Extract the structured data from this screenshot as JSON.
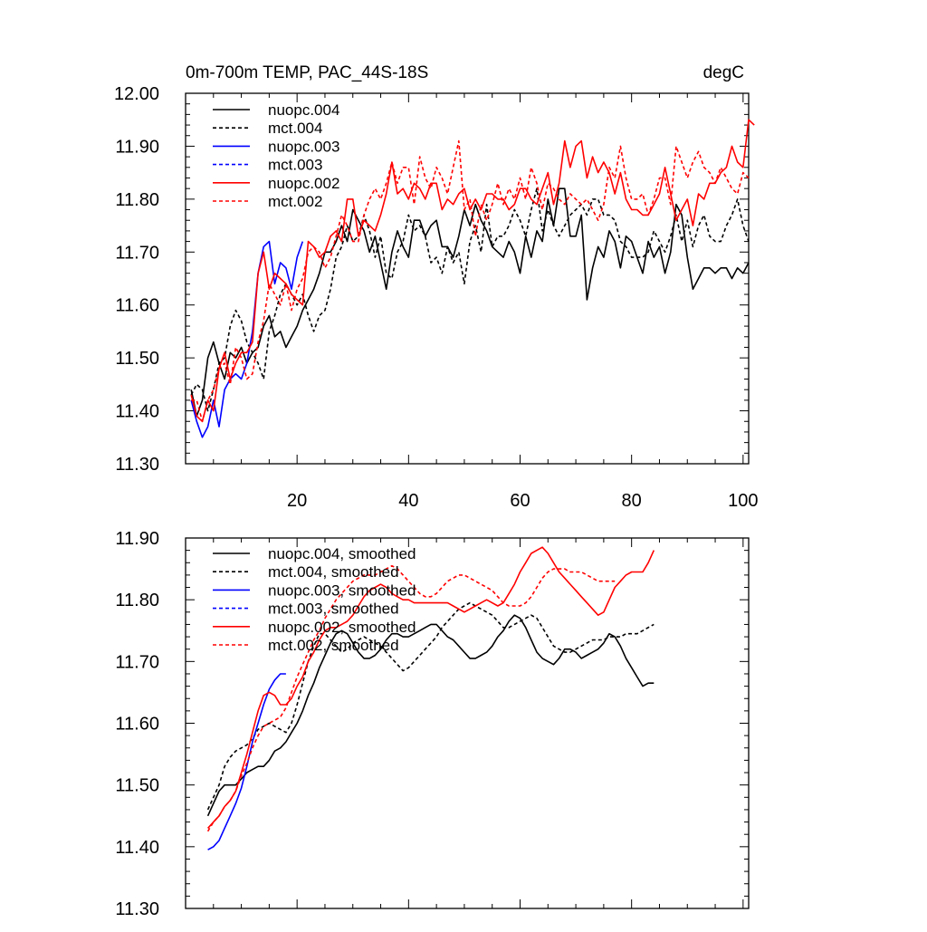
{
  "chart_data": [
    {
      "type": "line",
      "title": "0m-700m TEMP, PAC_44S-18S",
      "units": "degC",
      "xlabel": "",
      "ylabel": "",
      "xlim": [
        0,
        101
      ],
      "ylim": [
        11.3,
        12.0
      ],
      "xticks": [
        20,
        40,
        60,
        80,
        100
      ],
      "xtick_labels": [
        "20",
        "40",
        "60",
        "80",
        "100"
      ],
      "yticks": [
        11.3,
        11.4,
        11.5,
        11.6,
        11.7,
        11.8,
        11.9,
        12.0
      ],
      "ytick_labels": [
        "11.30",
        "11.40",
        "11.50",
        "11.60",
        "11.70",
        "11.80",
        "11.90",
        "12.00"
      ],
      "legend_position": "top-left",
      "series": [
        {
          "name": "nuopc.004",
          "color": "#000000",
          "style": "solid",
          "x0": 1,
          "values": [
            11.44,
            11.39,
            11.42,
            11.5,
            11.53,
            11.49,
            11.46,
            11.51,
            11.5,
            11.52,
            11.49,
            11.51,
            11.52,
            11.56,
            11.58,
            11.54,
            11.55,
            11.52,
            11.54,
            11.56,
            11.59,
            11.61,
            11.63,
            11.66,
            11.7,
            11.7,
            11.72,
            11.75,
            11.72,
            11.78,
            11.76,
            11.74,
            11.7,
            11.73,
            11.68,
            11.63,
            11.7,
            11.74,
            11.71,
            11.69,
            11.76,
            11.76,
            11.73,
            11.75,
            11.76,
            11.71,
            11.71,
            11.69,
            11.73,
            11.78,
            11.75,
            11.79,
            11.76,
            11.74,
            11.71,
            11.7,
            11.69,
            11.72,
            11.7,
            11.66,
            11.73,
            11.69,
            11.74,
            11.72,
            11.8,
            11.75,
            11.82,
            11.82,
            11.73,
            11.73,
            11.77,
            11.61,
            11.67,
            11.71,
            11.69,
            11.74,
            11.72,
            11.67,
            11.73,
            11.72,
            11.69,
            11.66,
            11.72,
            11.69,
            11.71,
            11.66,
            11.7,
            11.79,
            11.77,
            11.69,
            11.63,
            11.65,
            11.67,
            11.67,
            11.66,
            11.67,
            11.67,
            11.65,
            11.67,
            11.66,
            11.68
          ]
        },
        {
          "name": "mct.004",
          "color": "#000000",
          "style": "dashed",
          "x0": 1,
          "values": [
            11.43,
            11.45,
            11.44,
            11.4,
            11.44,
            11.49,
            11.5,
            11.56,
            11.59,
            11.57,
            11.53,
            11.51,
            11.49,
            11.46,
            11.55,
            11.58,
            11.62,
            11.64,
            11.62,
            11.6,
            11.62,
            11.58,
            11.55,
            11.58,
            11.59,
            11.63,
            11.69,
            11.71,
            11.75,
            11.72,
            11.73,
            11.77,
            11.74,
            11.69,
            11.73,
            11.66,
            11.65,
            11.7,
            11.72,
            11.77,
            11.74,
            11.75,
            11.73,
            11.68,
            11.69,
            11.66,
            11.71,
            11.68,
            11.7,
            11.64,
            11.72,
            11.75,
            11.7,
            11.79,
            11.71,
            11.73,
            11.73,
            11.75,
            11.78,
            11.76,
            11.73,
            11.78,
            11.82,
            11.74,
            11.78,
            11.75,
            11.73,
            11.75,
            11.77,
            11.78,
            11.79,
            11.77,
            11.8,
            11.8,
            11.77,
            11.77,
            11.76,
            11.72,
            11.71,
            11.69,
            11.69,
            11.69,
            11.7,
            11.74,
            11.72,
            11.7,
            11.73,
            11.77,
            11.72,
            11.76,
            11.71,
            11.75,
            11.77,
            11.73,
            11.72,
            11.72,
            11.75,
            11.77,
            11.8,
            11.75,
            11.72
          ]
        },
        {
          "name": "nuopc.003",
          "color": "#0000ff",
          "style": "solid",
          "x0": 1,
          "values": [
            11.42,
            11.38,
            11.35,
            11.37,
            11.42,
            11.37,
            11.44,
            11.46,
            11.47,
            11.46,
            11.49,
            11.55,
            11.66,
            11.71,
            11.72,
            11.64,
            11.68,
            11.67,
            11.63,
            11.69,
            11.72
          ]
        },
        {
          "name": "mct.003",
          "color": "#0000ff",
          "style": "dashed",
          "x0": 1,
          "values": []
        },
        {
          "name": "nuopc.002",
          "color": "#ff0000",
          "style": "solid",
          "x0": 1,
          "values": [
            11.43,
            11.39,
            11.38,
            11.42,
            11.4,
            11.48,
            11.51,
            11.46,
            11.49,
            11.51,
            11.51,
            11.53,
            11.66,
            11.7,
            11.63,
            11.66,
            11.65,
            11.64,
            11.62,
            11.61,
            11.6,
            11.72,
            11.71,
            11.69,
            11.7,
            11.73,
            11.74,
            11.72,
            11.8,
            11.8,
            11.73,
            11.76,
            11.75,
            11.74,
            11.77,
            11.81,
            11.87,
            11.81,
            11.82,
            11.8,
            11.83,
            11.82,
            11.8,
            11.83,
            11.83,
            11.78,
            11.8,
            11.79,
            11.81,
            11.82,
            11.78,
            11.8,
            11.78,
            11.81,
            11.81,
            11.8,
            11.8,
            11.78,
            11.79,
            11.82,
            11.82,
            11.8,
            11.79,
            11.82,
            11.85,
            11.79,
            11.83,
            11.91,
            11.86,
            11.9,
            11.91,
            11.84,
            11.88,
            11.85,
            11.87,
            11.85,
            11.81,
            11.85,
            11.8,
            11.78,
            11.78,
            11.77,
            11.77,
            11.79,
            11.81,
            11.86,
            11.81,
            11.76,
            11.78,
            11.8,
            11.75,
            11.81,
            11.8,
            11.83,
            11.83,
            11.85,
            11.86,
            11.9,
            11.87,
            11.86,
            11.95,
            11.94
          ]
        },
        {
          "name": "mct.002",
          "color": "#ff0000",
          "style": "dashed",
          "x0": 1,
          "values": [
            11.42,
            11.42,
            11.38,
            11.42,
            11.44,
            11.48,
            11.49,
            11.45,
            11.52,
            11.5,
            11.46,
            11.47,
            11.53,
            11.57,
            11.64,
            11.62,
            11.6,
            11.64,
            11.59,
            11.63,
            11.65,
            11.7,
            11.71,
            11.7,
            11.67,
            11.69,
            11.73,
            11.77,
            11.75,
            11.72,
            11.72,
            11.77,
            11.8,
            11.82,
            11.8,
            11.83,
            11.87,
            11.83,
            11.86,
            11.86,
            11.79,
            11.88,
            11.84,
            11.82,
            11.86,
            11.84,
            11.81,
            11.86,
            11.91,
            11.78,
            11.8,
            11.73,
            11.79,
            11.76,
            11.79,
            11.83,
            11.79,
            11.82,
            11.8,
            11.84,
            11.8,
            11.86,
            11.83,
            11.78,
            11.83,
            11.82,
            11.8,
            11.79,
            11.81,
            11.8,
            11.79,
            11.8,
            11.78,
            11.76,
            11.79,
            11.86,
            11.84,
            11.9,
            11.84,
            11.8,
            11.8,
            11.81,
            11.77,
            11.8,
            11.84,
            11.84,
            11.79,
            11.9,
            11.87,
            11.84,
            11.87,
            11.89,
            11.86,
            11.85,
            11.83,
            11.86,
            11.84,
            11.82,
            11.81,
            11.85,
            11.84
          ]
        }
      ]
    },
    {
      "type": "line",
      "title": "",
      "xlabel": "",
      "ylabel": "",
      "xlim": [
        0,
        101
      ],
      "ylim": [
        11.3,
        11.9
      ],
      "xticks": [
        20,
        40,
        60,
        80,
        100
      ],
      "xtick_labels": [],
      "yticks": [
        11.3,
        11.4,
        11.5,
        11.6,
        11.7,
        11.8,
        11.9
      ],
      "ytick_labels": [
        "11.30",
        "11.40",
        "11.50",
        "11.60",
        "11.70",
        "11.80",
        "11.90"
      ],
      "legend_position": "top-left",
      "series": [
        {
          "name": "nuopc.004, smoothed",
          "color": "#000000",
          "style": "solid",
          "x0": 4,
          "values": [
            11.45,
            11.47,
            11.49,
            11.5,
            11.5,
            11.5,
            11.51,
            11.52,
            11.525,
            11.53,
            11.53,
            11.54,
            11.555,
            11.56,
            11.57,
            11.585,
            11.6,
            11.62,
            11.645,
            11.665,
            11.69,
            11.71,
            11.73,
            11.745,
            11.75,
            11.745,
            11.73,
            11.715,
            11.705,
            11.705,
            11.71,
            11.72,
            11.735,
            11.745,
            11.745,
            11.74,
            11.74,
            11.745,
            11.75,
            11.755,
            11.76,
            11.76,
            11.75,
            11.74,
            11.735,
            11.725,
            11.715,
            11.705,
            11.705,
            11.71,
            11.715,
            11.725,
            11.74,
            11.75,
            11.765,
            11.775,
            11.77,
            11.755,
            11.735,
            11.715,
            11.705,
            11.7,
            11.695,
            11.705,
            11.72,
            11.72,
            11.715,
            11.705,
            11.71,
            11.715,
            11.72,
            11.73,
            11.745,
            11.74,
            11.725,
            11.705,
            11.69,
            11.675,
            11.66,
            11.665,
            11.665
          ]
        },
        {
          "name": "mct.004, smoothed",
          "color": "#000000",
          "style": "dashed",
          "x0": 4,
          "values": [
            11.46,
            11.48,
            11.5,
            11.53,
            11.545,
            11.555,
            11.56,
            11.565,
            11.575,
            11.59,
            11.595,
            11.6,
            11.595,
            11.59,
            11.585,
            11.6,
            11.63,
            11.665,
            11.7,
            11.725,
            11.745,
            11.745,
            11.735,
            11.725,
            11.715,
            11.72,
            11.73,
            11.735,
            11.74,
            11.735,
            11.73,
            11.725,
            11.715,
            11.705,
            11.695,
            11.685,
            11.69,
            11.7,
            11.71,
            11.72,
            11.73,
            11.74,
            11.755,
            11.765,
            11.775,
            11.785,
            11.79,
            11.795,
            11.79,
            11.785,
            11.78,
            11.775,
            11.765,
            11.755,
            11.755,
            11.76,
            11.765,
            11.77,
            11.775,
            11.77,
            11.755,
            11.74,
            11.725,
            11.72,
            11.715,
            11.715,
            11.72,
            11.725,
            11.73,
            11.735,
            11.735,
            11.735,
            11.74,
            11.74,
            11.74,
            11.745,
            11.745,
            11.745,
            11.75,
            11.755,
            11.76
          ]
        },
        {
          "name": "nuopc.003, smoothed",
          "color": "#0000ff",
          "style": "solid",
          "x0": 4,
          "values": [
            11.395,
            11.4,
            11.41,
            11.43,
            11.45,
            11.47,
            11.495,
            11.53,
            11.57,
            11.6,
            11.63,
            11.655,
            11.67,
            11.68,
            11.68
          ]
        },
        {
          "name": "mct.003, smoothed",
          "color": "#0000ff",
          "style": "dashed",
          "x0": 4,
          "values": []
        },
        {
          "name": "nuopc.002, smoothed",
          "color": "#ff0000",
          "style": "solid",
          "x0": 4,
          "values": [
            11.43,
            11.44,
            11.45,
            11.465,
            11.475,
            11.49,
            11.52,
            11.55,
            11.585,
            11.62,
            11.645,
            11.65,
            11.645,
            11.63,
            11.63,
            11.64,
            11.66,
            11.675,
            11.7,
            11.715,
            11.735,
            11.75,
            11.755,
            11.755,
            11.76,
            11.765,
            11.775,
            11.79,
            11.805,
            11.815,
            11.82,
            11.825,
            11.82,
            11.81,
            11.805,
            11.8,
            11.8,
            11.795,
            11.795,
            11.795,
            11.795,
            11.795,
            11.795,
            11.795,
            11.79,
            11.785,
            11.78,
            11.785,
            11.79,
            11.795,
            11.8,
            11.795,
            11.79,
            11.795,
            11.81,
            11.825,
            11.845,
            11.86,
            11.875,
            11.88,
            11.885,
            11.875,
            11.86,
            11.845,
            11.835,
            11.825,
            11.815,
            11.805,
            11.795,
            11.785,
            11.775,
            11.78,
            11.8,
            11.82,
            11.83,
            11.84,
            11.845,
            11.845,
            11.845,
            11.86,
            11.88
          ]
        },
        {
          "name": "mct.002, smoothed",
          "color": "#ff0000",
          "style": "dashed",
          "x0": 4,
          "values": [
            11.425,
            11.44,
            11.45,
            11.465,
            11.475,
            11.49,
            11.515,
            11.535,
            11.56,
            11.58,
            11.595,
            11.6,
            11.605,
            11.61,
            11.625,
            11.65,
            11.675,
            11.695,
            11.715,
            11.735,
            11.75,
            11.77,
            11.785,
            11.8,
            11.81,
            11.82,
            11.83,
            11.835,
            11.84,
            11.84,
            11.84,
            11.845,
            11.85,
            11.855,
            11.85,
            11.84,
            11.83,
            11.82,
            11.81,
            11.805,
            11.805,
            11.81,
            11.82,
            11.83,
            11.835,
            11.84,
            11.84,
            11.835,
            11.83,
            11.825,
            11.82,
            11.815,
            11.805,
            11.795,
            11.79,
            11.79,
            11.79,
            11.795,
            11.805,
            11.82,
            11.835,
            11.845,
            11.85,
            11.85,
            11.85,
            11.845,
            11.845,
            11.845,
            11.84,
            11.835,
            11.83,
            11.83,
            11.83,
            11.83
          ]
        }
      ]
    }
  ]
}
